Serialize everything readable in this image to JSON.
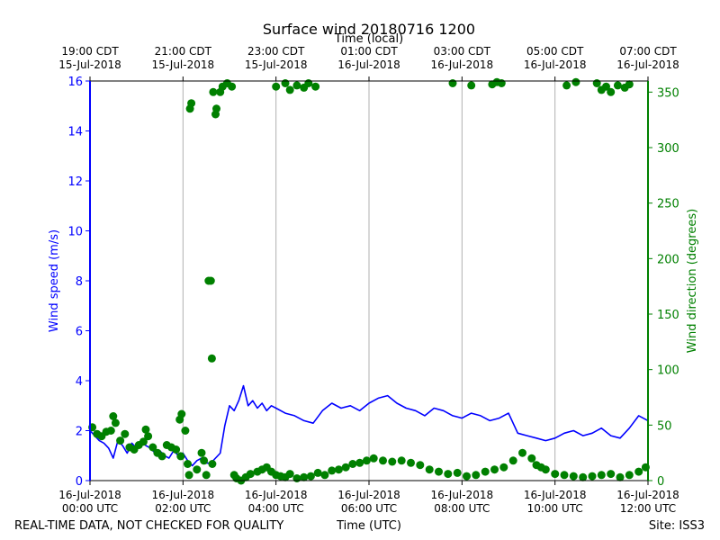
{
  "chart_data": {
    "type": "line",
    "title": "Surface wind 20180716 1200",
    "top_axis_label": "Time (local)",
    "xlabel": "Time (UTC)",
    "ylabel_left": "Wind speed (m/s)",
    "ylabel_right": "Wind direction (degrees)",
    "footer_left": "REAL-TIME DATA, NOT CHECKED FOR QUALITY",
    "footer_right": "Site: ISS3",
    "x_range_hours": [
      0,
      12
    ],
    "ylim_left": [
      0,
      16
    ],
    "ylim_right": [
      0,
      360
    ],
    "left_ticks": [
      "0",
      "2",
      "4",
      "6",
      "8",
      "10",
      "12",
      "14",
      "16"
    ],
    "right_ticks": [
      "0",
      "50",
      "100",
      "150",
      "200",
      "250",
      "300",
      "350"
    ],
    "bottom_ticks": [
      {
        "hour": 0,
        "line1": "16-Jul-2018",
        "line2": "00:00 UTC"
      },
      {
        "hour": 2,
        "line1": "16-Jul-2018",
        "line2": "02:00 UTC"
      },
      {
        "hour": 4,
        "line1": "16-Jul-2018",
        "line2": "04:00 UTC"
      },
      {
        "hour": 6,
        "line1": "16-Jul-2018",
        "line2": "06:00 UTC"
      },
      {
        "hour": 8,
        "line1": "16-Jul-2018",
        "line2": "08:00 UTC"
      },
      {
        "hour": 10,
        "line1": "16-Jul-2018",
        "line2": "10:00 UTC"
      },
      {
        "hour": 12,
        "line1": "16-Jul-2018",
        "line2": "12:00 UTC"
      }
    ],
    "top_ticks": [
      {
        "hour": 0,
        "line1": "19:00 CDT",
        "line2": "15-Jul-2018"
      },
      {
        "hour": 2,
        "line1": "21:00 CDT",
        "line2": "15-Jul-2018"
      },
      {
        "hour": 4,
        "line1": "23:00 CDT",
        "line2": "15-Jul-2018"
      },
      {
        "hour": 6,
        "line1": "01:00 CDT",
        "line2": "16-Jul-2018"
      },
      {
        "hour": 8,
        "line1": "03:00 CDT",
        "line2": "16-Jul-2018"
      },
      {
        "hour": 10,
        "line1": "05:00 CDT",
        "line2": "16-Jul-2018"
      },
      {
        "hour": 12,
        "line1": "07:00 CDT",
        "line2": "16-Jul-2018"
      }
    ],
    "series": [
      {
        "name": "Wind speed",
        "axis": "left",
        "color": "#0000ff",
        "style": "line",
        "x_hours": [
          0.0,
          0.1,
          0.2,
          0.3,
          0.4,
          0.5,
          0.6,
          0.7,
          0.8,
          0.9,
          1.0,
          1.1,
          1.2,
          1.3,
          1.4,
          1.5,
          1.6,
          1.7,
          1.8,
          1.9,
          2.0,
          2.1,
          2.2,
          2.3,
          2.4,
          2.5,
          2.6,
          2.7,
          2.8,
          2.9,
          3.0,
          3.1,
          3.2,
          3.3,
          3.4,
          3.5,
          3.6,
          3.7,
          3.8,
          3.9,
          4.0,
          4.2,
          4.4,
          4.6,
          4.8,
          5.0,
          5.2,
          5.4,
          5.6,
          5.8,
          6.0,
          6.2,
          6.4,
          6.6,
          6.8,
          7.0,
          7.2,
          7.4,
          7.6,
          7.8,
          8.0,
          8.2,
          8.4,
          8.6,
          8.8,
          9.0,
          9.2,
          9.4,
          9.6,
          9.8,
          10.0,
          10.2,
          10.4,
          10.6,
          10.8,
          11.0,
          11.2,
          11.4,
          11.6,
          11.8,
          12.0
        ],
        "values": [
          2.0,
          1.8,
          1.6,
          1.5,
          1.3,
          0.9,
          1.6,
          1.4,
          1.1,
          1.5,
          1.3,
          1.6,
          1.4,
          1.3,
          1.1,
          1.2,
          1.0,
          0.9,
          1.2,
          1.0,
          1.1,
          0.8,
          0.6,
          0.8,
          0.9,
          0.7,
          0.7,
          0.9,
          1.1,
          2.2,
          3.0,
          2.8,
          3.2,
          3.8,
          3.0,
          3.2,
          2.9,
          3.1,
          2.8,
          3.0,
          2.9,
          2.7,
          2.6,
          2.4,
          2.3,
          2.8,
          3.1,
          2.9,
          3.0,
          2.8,
          3.1,
          3.3,
          3.4,
          3.1,
          2.9,
          2.8,
          2.6,
          2.9,
          2.8,
          2.6,
          2.5,
          2.7,
          2.6,
          2.4,
          2.5,
          2.7,
          1.9,
          1.8,
          1.7,
          1.6,
          1.7,
          1.9,
          2.0,
          1.8,
          1.9,
          2.1,
          1.8,
          1.7,
          2.1,
          2.6,
          2.4
        ]
      },
      {
        "name": "Wind direction",
        "axis": "right",
        "color": "#008000",
        "style": "scatter",
        "x_hours": [
          0.05,
          0.15,
          0.25,
          0.35,
          0.45,
          0.5,
          0.55,
          0.65,
          0.75,
          0.85,
          0.95,
          1.05,
          1.15,
          1.2,
          1.25,
          1.35,
          1.45,
          1.55,
          1.65,
          1.75,
          1.85,
          1.95,
          1.93,
          1.97,
          2.05,
          2.1,
          2.13,
          2.15,
          2.18,
          2.3,
          2.4,
          2.45,
          2.5,
          2.55,
          2.6,
          2.62,
          2.63,
          2.65,
          2.7,
          2.72,
          2.8,
          2.85,
          2.95,
          3.05,
          3.1,
          3.15,
          3.25,
          3.35,
          3.45,
          3.6,
          3.7,
          3.8,
          3.9,
          4.0,
          4.1,
          4.2,
          4.3,
          4.45,
          4.6,
          4.75,
          4.9,
          5.05,
          5.2,
          5.35,
          5.5,
          5.65,
          5.8,
          5.95,
          6.1,
          6.3,
          6.5,
          6.7,
          6.9,
          7.1,
          7.3,
          7.5,
          7.7,
          7.9,
          8.1,
          8.3,
          8.5,
          8.7,
          8.9,
          9.1,
          9.3,
          9.5,
          9.6,
          9.7,
          9.8,
          10.0,
          10.2,
          10.4,
          10.6,
          10.8,
          11.0,
          11.2,
          11.4,
          11.6,
          11.8,
          11.95,
          7.8,
          8.2,
          8.65,
          8.75,
          8.85,
          10.25,
          10.45,
          10.9,
          11.0,
          11.1,
          11.2,
          11.35,
          11.5,
          11.6,
          4.0,
          4.2,
          4.3,
          4.45,
          4.6,
          4.7,
          4.85
        ],
        "values": [
          48,
          42,
          40,
          44,
          45,
          58,
          52,
          36,
          42,
          30,
          28,
          32,
          35,
          46,
          40,
          30,
          25,
          22,
          32,
          30,
          28,
          22,
          55,
          60,
          45,
          15,
          5,
          335,
          340,
          10,
          25,
          18,
          5,
          180,
          180,
          110,
          15,
          350,
          330,
          335,
          350,
          355,
          358,
          355,
          5,
          2,
          0,
          3,
          6,
          8,
          10,
          12,
          8,
          5,
          4,
          3,
          6,
          2,
          3,
          4,
          7,
          5,
          9,
          10,
          12,
          15,
          16,
          18,
          20,
          18,
          17,
          18,
          16,
          14,
          10,
          8,
          6,
          7,
          4,
          5,
          8,
          10,
          12,
          18,
          25,
          20,
          14,
          12,
          10,
          6,
          5,
          4,
          3,
          4,
          5,
          6,
          3,
          5,
          8,
          12,
          358,
          356,
          357,
          359,
          358,
          356,
          359,
          358,
          352,
          355,
          350,
          356,
          354,
          357,
          355,
          358,
          352,
          356,
          354,
          358,
          355
        ]
      }
    ]
  }
}
